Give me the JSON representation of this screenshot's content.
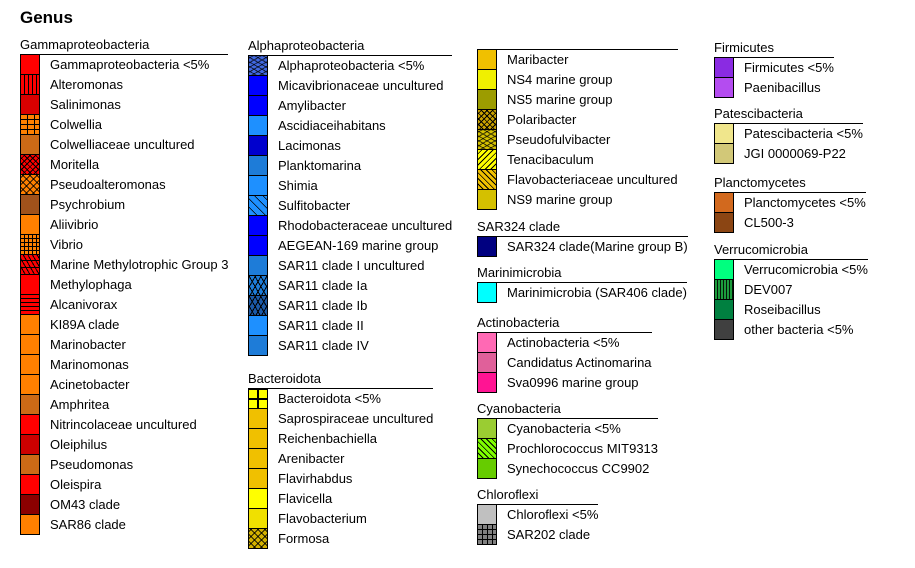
{
  "title": "Genus",
  "groups": [
    {
      "id": "g1",
      "name": "Gammaproteobacteria",
      "items": [
        {
          "label": "Gammaproteobacteria <5%",
          "color": "#ff0000",
          "pattern": ""
        },
        {
          "label": "Alteromonas",
          "color": "#ff0000",
          "pattern": "vlines"
        },
        {
          "label": "Salinimonas",
          "color": "#d90000",
          "pattern": ""
        },
        {
          "label": "Colwellia",
          "color": "#ff8000",
          "pattern": "brick"
        },
        {
          "label": "Colwelliaceae uncultured",
          "color": "#cc6a16",
          "pattern": ""
        },
        {
          "label": "Moritella",
          "color": "#ff0000",
          "pattern": "cross"
        },
        {
          "label": "Pseudoalteromonas",
          "color": "#ff8000",
          "pattern": "zigzag"
        },
        {
          "label": "Psychrobium",
          "color": "#a0521b",
          "pattern": ""
        },
        {
          "label": "Aliivibrio",
          "color": "#ff8000",
          "pattern": ""
        },
        {
          "label": "Vibrio",
          "color": "#ff8000",
          "pattern": "grid"
        },
        {
          "label": "Marine Methylotrophic Group 3",
          "color": "#ff0000",
          "pattern": "squiggle"
        },
        {
          "label": "Methylophaga",
          "color": "#ff0000",
          "pattern": ""
        },
        {
          "label": "Alcanivorax",
          "color": "#ff0000",
          "pattern": "hlines"
        },
        {
          "label": "KI89A clade",
          "color": "#ff8000",
          "pattern": ""
        },
        {
          "label": "Marinobacter",
          "color": "#ff8000",
          "pattern": ""
        },
        {
          "label": "Marinomonas",
          "color": "#ff8000",
          "pattern": ""
        },
        {
          "label": "Acinetobacter",
          "color": "#ff8000",
          "pattern": ""
        },
        {
          "label": "Amphritea",
          "color": "#cc6a16",
          "pattern": ""
        },
        {
          "label": "Nitrincolaceae uncultured",
          "color": "#ff0000",
          "pattern": ""
        },
        {
          "label": "Oleiphilus",
          "color": "#cc0000",
          "pattern": ""
        },
        {
          "label": "Pseudomonas",
          "color": "#cc6a16",
          "pattern": ""
        },
        {
          "label": "Oleispira",
          "color": "#ff0000",
          "pattern": ""
        },
        {
          "label": "OM43 clade",
          "color": "#8b0000",
          "pattern": ""
        },
        {
          "label": "SAR86 clade",
          "color": "#ff8000",
          "pattern": ""
        }
      ]
    },
    {
      "id": "g2",
      "name": "Alphaproteobacteria",
      "items": [
        {
          "label": "Alphaproteobacteria <5%",
          "color": "#4169e1",
          "pattern": "wave"
        },
        {
          "label": "Micavibrionaceae uncultured",
          "color": "#0000ff",
          "pattern": ""
        },
        {
          "label": "Amylibacter",
          "color": "#0000ff",
          "pattern": ""
        },
        {
          "label": "Ascidiaceihabitans",
          "color": "#1e90ff",
          "pattern": ""
        },
        {
          "label": "Lacimonas",
          "color": "#0000cd",
          "pattern": ""
        },
        {
          "label": "Planktomarina",
          "color": "#1e7cd8",
          "pattern": ""
        },
        {
          "label": "Shimia",
          "color": "#1e90ff",
          "pattern": ""
        },
        {
          "label": "Sulfitobacter",
          "color": "#1e90ff",
          "pattern": "dash"
        },
        {
          "label": "Rhodobacteraceae uncultured",
          "color": "#0000ff",
          "pattern": ""
        },
        {
          "label": "AEGEAN-169 marine group",
          "color": "#0000ff",
          "pattern": ""
        },
        {
          "label": "SAR11 clade I uncultured",
          "color": "#1e7cd8",
          "pattern": ""
        },
        {
          "label": "SAR11 clade Ia",
          "color": "#1e7cd8",
          "pattern": "hex"
        },
        {
          "label": "SAR11 clade Ib",
          "color": "#1c5aa8",
          "pattern": "hex"
        },
        {
          "label": "SAR11 clade II",
          "color": "#1e90ff",
          "pattern": ""
        },
        {
          "label": "SAR11 clade IV",
          "color": "#1e7cd8",
          "pattern": ""
        }
      ]
    },
    {
      "id": "g3",
      "name": "Bacteroidota",
      "items": [
        {
          "label": "Bacteroidota <5%",
          "color": "#ffff00",
          "pattern": "bigbox"
        },
        {
          "label": "Saprospiraceae uncultured",
          "color": "#f0c000",
          "pattern": ""
        },
        {
          "label": "Reichenbachiella",
          "color": "#f0c000",
          "pattern": ""
        },
        {
          "label": "Arenibacter",
          "color": "#f0c000",
          "pattern": ""
        },
        {
          "label": "Flavirhabdus",
          "color": "#f0c000",
          "pattern": ""
        },
        {
          "label": "Flavicella",
          "color": "#ffff00",
          "pattern": ""
        },
        {
          "label": "Flavobacterium",
          "color": "#f0e000",
          "pattern": ""
        },
        {
          "label": "Formosa",
          "color": "#d4b200",
          "pattern": "zigzag"
        }
      ]
    },
    {
      "id": "g4",
      "name": "",
      "items": [
        {
          "label": "Maribacter",
          "color": "#f0c000",
          "pattern": ""
        },
        {
          "label": "NS4 marine group",
          "color": "#f0f000",
          "pattern": ""
        },
        {
          "label": "NS5 marine group",
          "color": "#9c9c00",
          "pattern": ""
        },
        {
          "label": "Polaribacter",
          "color": "#c8a000",
          "pattern": "cross"
        },
        {
          "label": "Pseudofulvibacter",
          "color": "#d4c000",
          "pattern": "wave"
        },
        {
          "label": "Tenacibaculum",
          "color": "#ffff00",
          "pattern": "diag2"
        },
        {
          "label": "Flavobacteriaceae uncultured",
          "color": "#f0c000",
          "pattern": "diag"
        },
        {
          "label": "NS9 marine group",
          "color": "#d4c000",
          "pattern": ""
        }
      ]
    },
    {
      "id": "g5",
      "name": "SAR324 clade",
      "items": [
        {
          "label": "SAR324 clade(Marine group B)",
          "color": "#000080",
          "pattern": ""
        }
      ]
    },
    {
      "id": "g6",
      "name": "Marinimicrobia",
      "items": [
        {
          "label": "Marinimicrobia (SAR406 clade)",
          "color": "#00ffff",
          "pattern": ""
        }
      ]
    },
    {
      "id": "g7",
      "name": "Actinobacteria",
      "items": [
        {
          "label": "Actinobacteria <5%",
          "color": "#ff69b4",
          "pattern": ""
        },
        {
          "label": "Candidatus Actinomarina",
          "color": "#e0609a",
          "pattern": ""
        },
        {
          "label": "Sva0996 marine group",
          "color": "#ff1493",
          "pattern": ""
        }
      ]
    },
    {
      "id": "g8",
      "name": "Cyanobacteria",
      "items": [
        {
          "label": "Cyanobacteria <5%",
          "color": "#9acd32",
          "pattern": ""
        },
        {
          "label": "Prochlorococcus MIT9313",
          "color": "#7fff00",
          "pattern": "diag"
        },
        {
          "label": "Synechococcus CC9902",
          "color": "#66cc00",
          "pattern": ""
        }
      ]
    },
    {
      "id": "g9",
      "name": "Chloroflexi",
      "items": [
        {
          "label": "Chloroflexi <5%",
          "color": "#c0c0c0",
          "pattern": ""
        },
        {
          "label": "SAR202 clade",
          "color": "#808080",
          "pattern": "hashbox"
        }
      ]
    },
    {
      "id": "g10",
      "name": "Firmicutes",
      "items": [
        {
          "label": "Firmicutes <5%",
          "color": "#8a2be2",
          "pattern": ""
        },
        {
          "label": "Paenibacillus",
          "color": "#b44cf0",
          "pattern": ""
        }
      ]
    },
    {
      "id": "g11",
      "name": "Patescibacteria",
      "items": [
        {
          "label": "Patescibacteria <5%",
          "color": "#f0e68c",
          "pattern": ""
        },
        {
          "label": "JGI 0000069-P22",
          "color": "#d2c878",
          "pattern": ""
        }
      ]
    },
    {
      "id": "g12",
      "name": "Planctomycetes",
      "items": [
        {
          "label": "Planctomycetes <5%",
          "color": "#d2691e",
          "pattern": ""
        },
        {
          "label": "CL500-3",
          "color": "#8b4513",
          "pattern": ""
        }
      ]
    },
    {
      "id": "g13",
      "name": "Verrucomicrobia",
      "items": [
        {
          "label": "Verrucomicrobia <5%",
          "color": "#00ff7f",
          "pattern": ""
        },
        {
          "label": "DEV007",
          "color": "#1c9c3c",
          "pattern": "weave"
        },
        {
          "label": "Roseibacillus",
          "color": "#008040",
          "pattern": ""
        },
        {
          "label": "other bacteria <5%",
          "color": "#404040",
          "pattern": ""
        }
      ]
    }
  ]
}
